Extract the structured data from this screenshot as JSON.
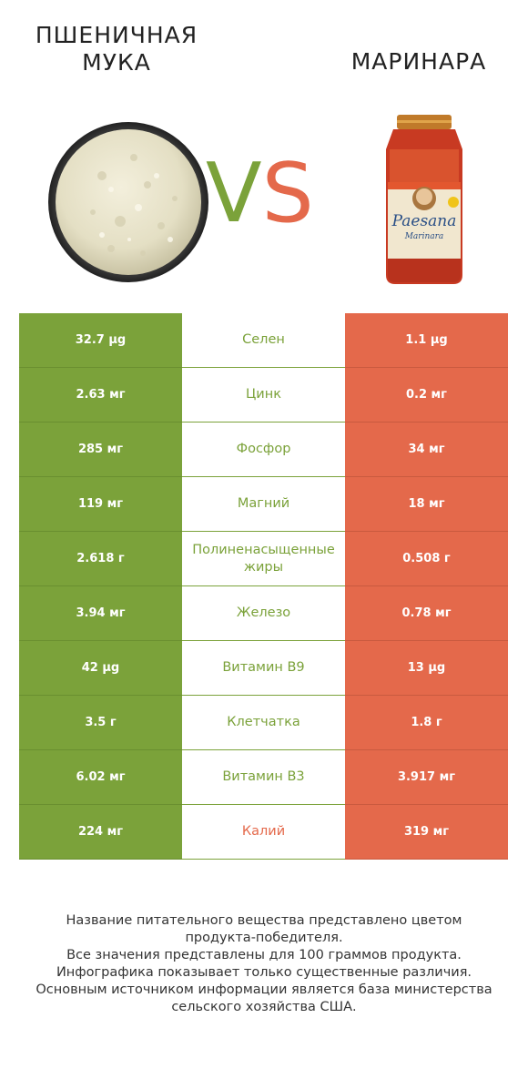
{
  "left_product": {
    "name": "ПШЕНИЧНАЯ МУКА",
    "color": "#7ba23a",
    "image": "flour-bowl"
  },
  "right_product": {
    "name": "МАРИНАРА",
    "color": "#e4694b",
    "image": "marinara-jar",
    "jar_brand": "Paesana",
    "jar_variety": "Marinara"
  },
  "vs": {
    "v": "V",
    "s": "S"
  },
  "rows": [
    {
      "nutrient": "Селен",
      "left": "32.7 µg",
      "right": "1.1 µg",
      "winner": "left"
    },
    {
      "nutrient": "Цинк",
      "left": "2.63 мг",
      "right": "0.2 мг",
      "winner": "left"
    },
    {
      "nutrient": "Фосфор",
      "left": "285 мг",
      "right": "34 мг",
      "winner": "left"
    },
    {
      "nutrient": "Магний",
      "left": "119 мг",
      "right": "18 мг",
      "winner": "left"
    },
    {
      "nutrient": "Полиненасыщенные жиры",
      "left": "2.618 г",
      "right": "0.508 г",
      "winner": "left"
    },
    {
      "nutrient": "Железо",
      "left": "3.94 мг",
      "right": "0.78 мг",
      "winner": "left"
    },
    {
      "nutrient": "Витамин B9",
      "left": "42 µg",
      "right": "13 µg",
      "winner": "left"
    },
    {
      "nutrient": "Клетчатка",
      "left": "3.5 г",
      "right": "1.8 г",
      "winner": "left"
    },
    {
      "nutrient": "Витамин B3",
      "left": "6.02 мг",
      "right": "3.917 мг",
      "winner": "left"
    },
    {
      "nutrient": "Калий",
      "left": "224 мг",
      "right": "319 мг",
      "winner": "right"
    }
  ],
  "footer": {
    "line1": "Название питательного вещества представлено цветом",
    "line2": "продукта-победителя.",
    "line3": "Все значения представлены для 100 граммов продукта.",
    "line4": "Инфографика показывает только существенные различия.",
    "line5": "Основным источником информации является база министерства",
    "line6": "сельского хозяйства США."
  }
}
